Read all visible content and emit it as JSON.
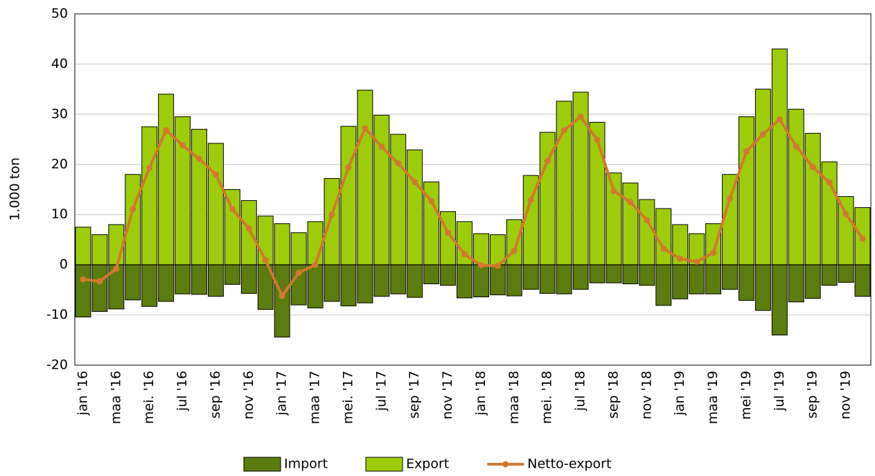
{
  "chart_data": {
    "type": "bar",
    "y_label": "1.000 ton",
    "categories": [
      "jan '16",
      null,
      "maa '16",
      null,
      "mei. '16",
      null,
      "jul '16",
      null,
      "sep '16",
      null,
      "nov '16",
      null,
      "jan '17",
      null,
      "maa '17",
      null,
      "mei. '17",
      null,
      "jul '17",
      null,
      "sep '17",
      null,
      "nov '17",
      null,
      "jan '18",
      null,
      "maa '18",
      null,
      "mei. '18",
      null,
      "jul '18",
      null,
      "sep '18",
      null,
      "nov '18",
      null,
      "jan '19",
      null,
      "maa '19",
      null,
      "mei '19",
      null,
      "jul '19",
      null,
      "sep '19",
      null,
      "nov '19",
      null
    ],
    "series": [
      {
        "name": "Import",
        "type": "bar",
        "color": "#5b7c0e",
        "values": [
          -10.4,
          -9.3,
          -8.8,
          -7,
          -8.3,
          -7.3,
          -5.8,
          -5.9,
          -6.3,
          -3.9,
          -5.7,
          -8.9,
          -14.4,
          -8,
          -8.6,
          -7.3,
          -8.2,
          -7.6,
          -6.3,
          -5.8,
          -6.5,
          -3.8,
          -4.1,
          -6.6,
          -6.4,
          -6,
          -6.2,
          -4.9,
          -5.7,
          -5.8,
          -4.9,
          -3.6,
          -3.6,
          -3.8,
          -4.1,
          -8.1,
          -6.8,
          -5.8,
          -5.8,
          -4.9,
          -7.1,
          -9.1,
          -14,
          -7.4,
          -6.7,
          -4.1,
          -3.5,
          -6.3
        ]
      },
      {
        "name": "Export",
        "type": "bar",
        "color": "#9dcc0b",
        "values": [
          7.5,
          6,
          8,
          18,
          27.5,
          34,
          29.5,
          27,
          24.2,
          15,
          12.8,
          9.7,
          8.2,
          6.4,
          8.6,
          17.2,
          27.6,
          34.8,
          29.8,
          26,
          22.9,
          16.5,
          10.6,
          8.6,
          6.2,
          6,
          9,
          17.8,
          26.4,
          32.6,
          34.4,
          28.4,
          18.3,
          16.3,
          13,
          11.2,
          8,
          6.2,
          8.2,
          18,
          29.5,
          35,
          43,
          31,
          26.2,
          20.5,
          13.6,
          11.4
        ]
      },
      {
        "name": "Netto-export",
        "type": "line",
        "color": "#d2782f",
        "values": [
          -2.9,
          -3.3,
          -0.8,
          11.1,
          19.3,
          26.8,
          23.8,
          21.1,
          18,
          11.1,
          7.2,
          0.9,
          -6.2,
          -1.6,
          0,
          10,
          19.4,
          27.2,
          23.5,
          20.2,
          16.5,
          12.7,
          6.4,
          2.1,
          -0.1,
          -0.2,
          2.8,
          12.9,
          20.7,
          26.8,
          29.5,
          24.9,
          14.7,
          12.5,
          8.9,
          3.2,
          1.2,
          0.6,
          2.4,
          13.2,
          22.6,
          26,
          29,
          23.6,
          19.5,
          16.4,
          10.1,
          5.2
        ]
      }
    ],
    "ylim": [
      -20,
      50
    ],
    "yticks": [
      -20,
      -10,
      0,
      10,
      20,
      30,
      40,
      50
    ],
    "grid": true,
    "legend": "bottom"
  }
}
